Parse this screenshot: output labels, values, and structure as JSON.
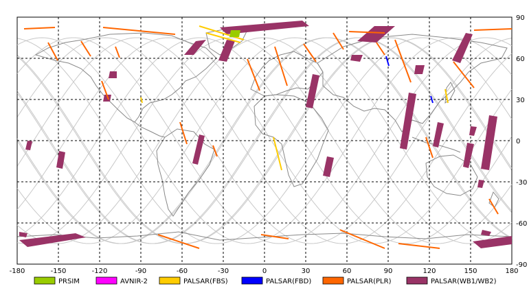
{
  "map": {
    "lon_range": [
      -180,
      180
    ],
    "lat_range": [
      -90,
      90
    ],
    "x_ticks": [
      "-180",
      "-150",
      "-120",
      "-90",
      "-60",
      "-30",
      "0",
      "30",
      "60",
      "90",
      "120",
      "150",
      "180"
    ],
    "y_ticks_right": [
      "90",
      "60",
      "30",
      "0",
      "-30",
      "-60",
      "-90"
    ],
    "grid": "dashed",
    "colors": {
      "coastline": "#888888",
      "orbit_track": "#c8c8c8",
      "grid": "#000000"
    }
  },
  "legend": {
    "items": [
      {
        "label": "PRSIM",
        "color": "#99cc00"
      },
      {
        "label": "AVNIR-2",
        "color": "#ff00ff"
      },
      {
        "label": "PALSAR(FBS)",
        "color": "#ffcc00"
      },
      {
        "label": "PALSAR(FBD)",
        "color": "#0000ff"
      },
      {
        "label": "PALSAR(PLR)",
        "color": "#ff6600"
      },
      {
        "label": "PALSAR(WB1/WB2)",
        "color": "#993366"
      }
    ]
  }
}
